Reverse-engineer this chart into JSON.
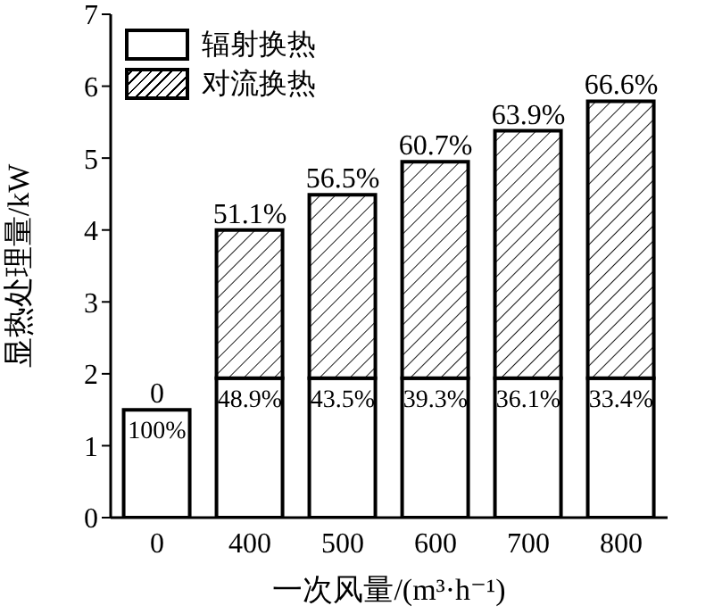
{
  "chart_data": {
    "type": "bar",
    "stacked": true,
    "xlabel": "一次风量/(m³·h⁻¹)",
    "ylabel": "显热处理量/kW",
    "categories": [
      "0",
      "400",
      "500",
      "600",
      "700",
      "800"
    ],
    "series": [
      {
        "name": "辐射换热",
        "color": "#000000",
        "values": [
          1.5,
          1.94,
          1.94,
          1.94,
          1.94,
          1.94
        ]
      },
      {
        "name": "对流换热",
        "color": "#000000",
        "values": [
          0,
          2.06,
          2.55,
          3.01,
          3.44,
          3.85
        ]
      }
    ],
    "annotations": [
      {
        "text": "100%",
        "x": "0",
        "y": 1.5
      },
      {
        "text": "0",
        "x": "0",
        "y": 1.5
      },
      {
        "text": "48.9%",
        "x": "400",
        "y": 1.94
      },
      {
        "text": "51.1%",
        "x": "400",
        "y": 4.0
      },
      {
        "text": "43.5%",
        "x": "500",
        "y": 1.94
      },
      {
        "text": "56.5%",
        "x": "500",
        "y": 4.49
      },
      {
        "text": "39.3%",
        "x": "600",
        "y": 1.94
      },
      {
        "text": "60.7%",
        "x": "600",
        "y": 4.95
      },
      {
        "text": "36.1%",
        "x": "700",
        "y": 1.94
      },
      {
        "text": "63.9%",
        "x": "700",
        "y": 5.38
      },
      {
        "text": "33.4%",
        "x": "800",
        "y": 1.94
      },
      {
        "text": "66.6%",
        "x": "800",
        "y": 5.79
      }
    ],
    "ylim": [
      0,
      7
    ],
    "yticks": [
      0,
      1,
      2,
      3,
      4,
      5,
      6,
      7
    ],
    "legend": "top left",
    "grid": false
  }
}
